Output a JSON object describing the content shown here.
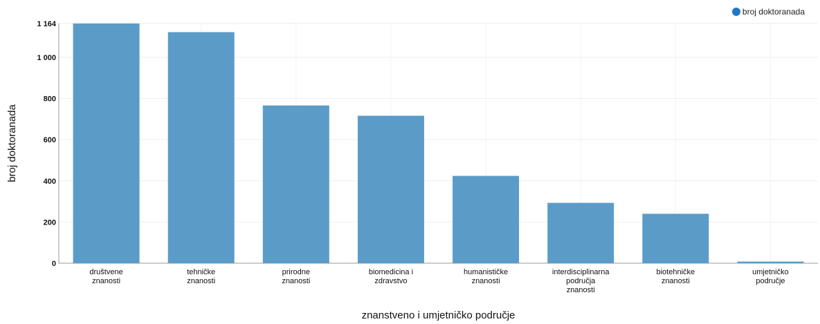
{
  "chart_data": {
    "type": "bar",
    "categories": [
      [
        "društvene",
        "znanosti"
      ],
      [
        "tehničke",
        "znanosti"
      ],
      [
        "prirodne",
        "znanosti"
      ],
      [
        "biomedicina i",
        "zdravstvo"
      ],
      [
        "humanističke",
        "znanosti"
      ],
      [
        "interdisciplinarna",
        "područja",
        "znanosti"
      ],
      [
        "biotehničke",
        "znanosti"
      ],
      [
        "umjetničko",
        "područje"
      ]
    ],
    "series": [
      {
        "name": "broj doktoranada",
        "values": [
          1164,
          1122,
          766,
          716,
          424,
          293,
          240,
          8
        ],
        "color": "#5b9bc8"
      }
    ],
    "xlabel": "znanstveno i umjetničko područje",
    "ylabel": "broj doktoranada",
    "ylim": [
      0,
      1164
    ],
    "yticks": [
      0,
      200,
      400,
      600,
      800,
      1000,
      1164
    ],
    "ytick_labels": [
      "0",
      "200",
      "400",
      "600",
      "800",
      "1 000",
      "1 164"
    ],
    "grid": true,
    "legend_position": "top-right",
    "legend_marker_color": "#1f78c8"
  }
}
